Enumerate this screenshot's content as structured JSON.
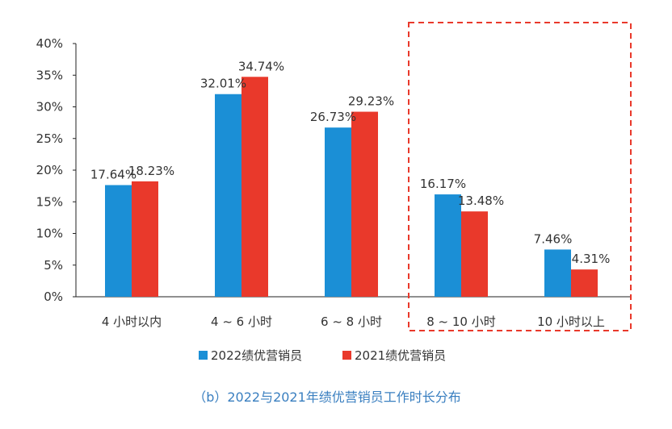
{
  "chart_data": {
    "type": "bar",
    "categories": [
      "4 小时以内",
      "4 ~ 6 小时",
      "6 ~ 8 小时",
      "8 ~ 10 小时",
      "10 小时以上"
    ],
    "series": [
      {
        "name": "2022绩优营销员",
        "color": "#1b8fd6",
        "values": [
          17.64,
          32.01,
          26.73,
          16.17,
          7.46
        ],
        "labels": [
          "17.64%",
          "32.01%",
          "26.73%",
          "16.17%",
          "7.46%"
        ]
      },
      {
        "name": "2021绩优营销员",
        "color": "#e9392b",
        "values": [
          18.23,
          34.74,
          29.23,
          13.48,
          4.31
        ],
        "labels": [
          "18.23%",
          "34.74%",
          "29.23%",
          "13.48%",
          "4.31%"
        ]
      }
    ],
    "yticks": [
      "0%",
      "5%",
      "10%",
      "15%",
      "20%",
      "25%",
      "30%",
      "35%",
      "40%"
    ],
    "ylim": [
      0,
      40
    ],
    "legend_position": "bottom-center",
    "highlight": {
      "categories": [
        "8 ~ 10 小时",
        "10 小时以上"
      ],
      "color": "#e9392b",
      "style": "dashed"
    },
    "caption": "（b）2022与2021年绩优营销员工作时长分布"
  }
}
